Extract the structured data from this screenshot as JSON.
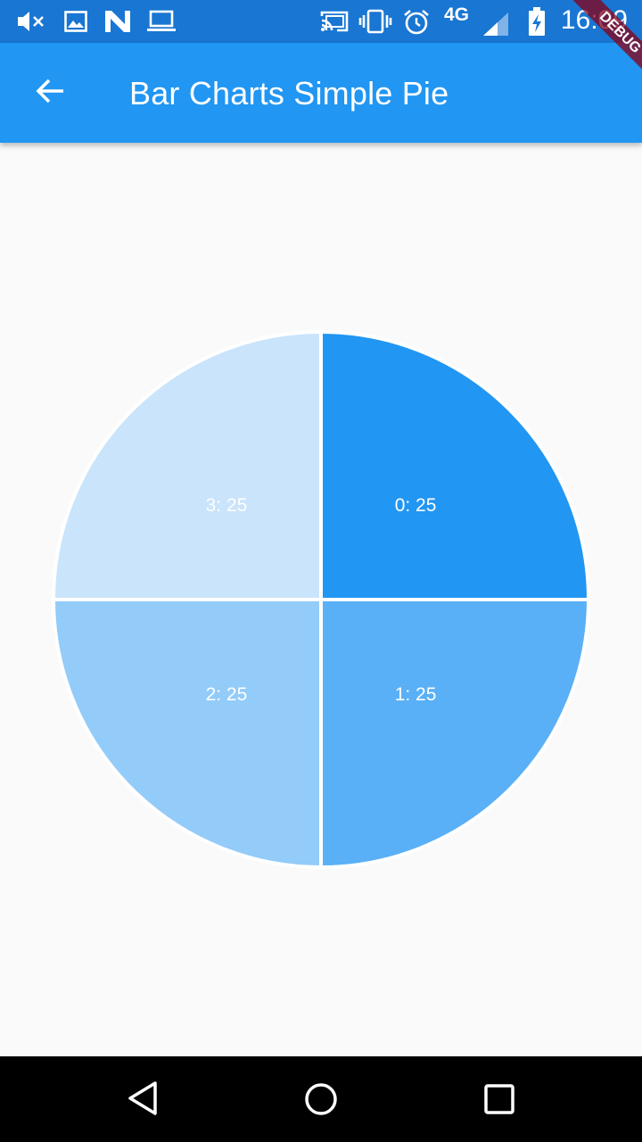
{
  "status_bar": {
    "time": "16:09",
    "network": "4G",
    "icons": [
      "muted-volume-icon",
      "image-icon",
      "n-logo-icon",
      "laptop-icon",
      "cast-icon",
      "vibrate-icon",
      "alarm-icon",
      "signal-icon",
      "battery-charging-icon"
    ]
  },
  "app_bar": {
    "title": "Bar Charts Simple Pie",
    "back_icon": "arrow-back-icon",
    "color": "#2196f3"
  },
  "debug_banner": {
    "label": "DEBUG"
  },
  "chart_data": {
    "type": "pie",
    "categories": [
      "0",
      "1",
      "2",
      "3"
    ],
    "values": [
      25,
      25,
      25,
      25
    ],
    "labels": [
      "0: 25",
      "1: 25",
      "2: 25",
      "3: 25"
    ],
    "colors": [
      "#2196f3",
      "#5ab0f6",
      "#93cbf9",
      "#c9e4fb"
    ],
    "title": ""
  },
  "nav_bar": {
    "buttons": [
      "back-triangle-icon",
      "home-circle-icon",
      "recents-square-icon"
    ]
  }
}
